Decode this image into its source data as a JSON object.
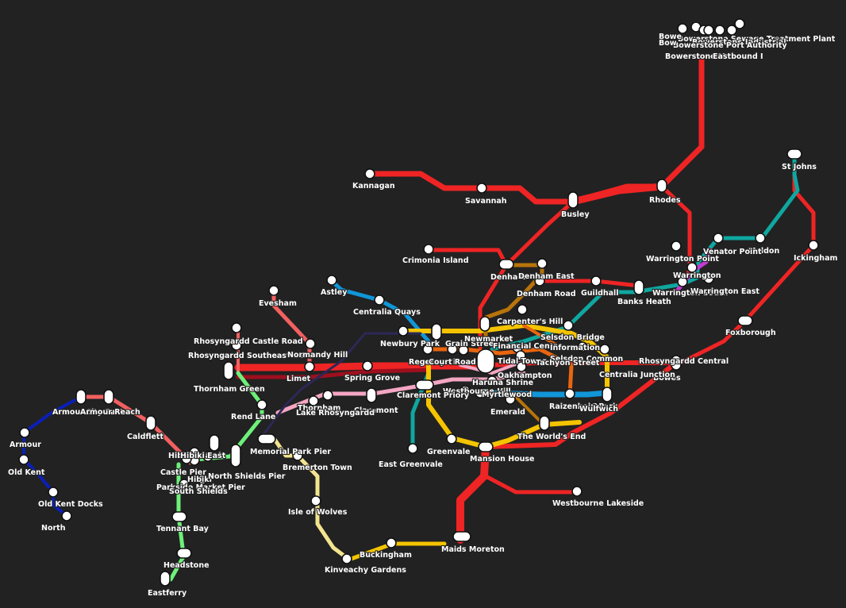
{
  "map": {
    "background": "#222222",
    "line_colors": {
      "red": "#ef2424",
      "red_light": "#f26060",
      "dark_red": "#9e0f1e",
      "teal": "#0fa7a0",
      "cyan_blue": "#1196d8",
      "blue": "#0a1fb8",
      "yellow": "#f5c400",
      "orange": "#e9650f",
      "brown": "#b8740a",
      "pink": "#f4a6c3",
      "green": "#6ef07a",
      "pale_yellow": "#f3e48f",
      "purple": "#c43ad0",
      "navy": "#2c2857"
    },
    "stations": [
      "Bowerstone Sewage Treatment Plant",
      "Bowerstone Industrial",
      "Bowerstone Port Authority",
      "Bowerstone M",
      "Eastbound I",
      "Bowe",
      "Bow",
      "St Johns",
      "Kannagan",
      "Savannah",
      "Busley",
      "Rhodes",
      "Ickingham",
      "Maldon",
      "Venator Point",
      "Warrington Point",
      "Warrington",
      "Warrington South",
      "Warrington East",
      "Crimonia Island",
      "Denham",
      "Denham East",
      "Denham Road",
      "Guildhall",
      "Banks Heath",
      "Astley",
      "Evesham",
      "Centralia Quays",
      "Carpenter's Hill",
      "Foxborough",
      "Selsdon Bridge",
      "Rhosyngardd Castle Road",
      "Rhosyngardd Southeast Gate",
      "Normandy Hill",
      "Newbury Park",
      "Grain Street",
      "Newmarket",
      "Financial Centre",
      "Information",
      "Selsdon Common",
      "Rhosyngardd Central",
      "Thornham Green",
      "Spring Grove",
      "Limet",
      "Regency Circus",
      "Court Road",
      "Tidal Tower",
      "Tachyon Street",
      "Oakhampton",
      "Bowes",
      "Centralia Junction",
      "Haruna Shrine",
      "Westbourne Hill",
      "Claremont Priory",
      "Thornham",
      "Claremont",
      "Lake Rhosyngardd",
      "Rend Lane",
      "Myrtlewood",
      "Emerald",
      "Raizenbain Park",
      "Wulfwich",
      "Armour",
      "Armour City East",
      "Armour Reach",
      "Caldflett",
      "Old Kent",
      "Old Kent Docks",
      "North",
      "Hibiki Island",
      "Hibiki East",
      "Memorial Park Pier",
      "Castle Pier",
      "Hibiki",
      "North Shields Pier",
      "Parkside Market Pier",
      "South Shields",
      "Tennant Bay",
      "Headstone",
      "Eastferry",
      "Bremerton Town",
      "Isle of Wolves",
      "Kinveachy Gardens",
      "Buckingham",
      "Maids Moreton",
      "Westbourne Lakeside",
      "East Greenvale",
      "Greenvale",
      "Mansion House",
      "The World's End"
    ],
    "visible_labels": [
      "Bowerstone Sewage Treatment Plant",
      "Bowerstone Industrial",
      "Bowerstone Port Authority",
      "Bowerstone M",
      "Eastbound I",
      "Bowe",
      "Bow",
      "St Johns",
      "Kannagan",
      "Savannah",
      "Busley",
      "Rhodes",
      "Ickingham",
      "Maldon",
      "Venator Point",
      "Warrington Point",
      "Warrington",
      "Warrington South",
      "Warrington East",
      "Crimonia Island",
      "Denham",
      "Denham East",
      "Denham Road",
      "Guildhall",
      "Banks Heath",
      "Astley",
      "Evesham",
      "Centralia Quays",
      "Carpenter's Hill",
      "Foxborough",
      "Selsdon Bridge",
      "Rhosyngardd Castle Road",
      "Rhosyngardd Southeast Gate",
      "Normandy Hill",
      "Newbury Park",
      "Grain Street",
      "Newmarket",
      "Financial Centre",
      "Information",
      "Selsdon Common",
      "Rhosyngardd Central",
      "Thornham Green",
      "Spring Grove",
      "Limet",
      "Regency Circus",
      "Court Road",
      "Tidal Tower",
      "Tachyon Street",
      "Oakhampton",
      "Bowes",
      "Centralia Junction",
      "Haruna Shrine",
      "Westbourne Hill",
      "Claremont Priory",
      "Thornham",
      "Claremont",
      "Lake Rhosyngardd",
      "Rend Lane",
      "Myrtlewood",
      "Emerald",
      "Raizenbain Park",
      "Wulfwich",
      "Armour",
      "Armour.City East",
      "Armour Reach",
      "Caldflett",
      "Old Kent",
      "Old Kent Docks",
      "North",
      "Hibiki Island",
      "Hibiki East",
      "Memorial Park Pier",
      "Castle Pier",
      "Hibiki",
      "North Shields Pier",
      "Parkside Market Pier",
      "South Shields",
      "Tennant Bay",
      "Headstone",
      "Eastferry",
      "Bremerton Town",
      "Isle of Wolves",
      "Kinveachy Gardens",
      "Buckingham",
      "Maids Moreton",
      "Westbourne Lakeside",
      "East Greenvale",
      "Greenvale",
      "Mansion House",
      "The World's End"
    ]
  }
}
